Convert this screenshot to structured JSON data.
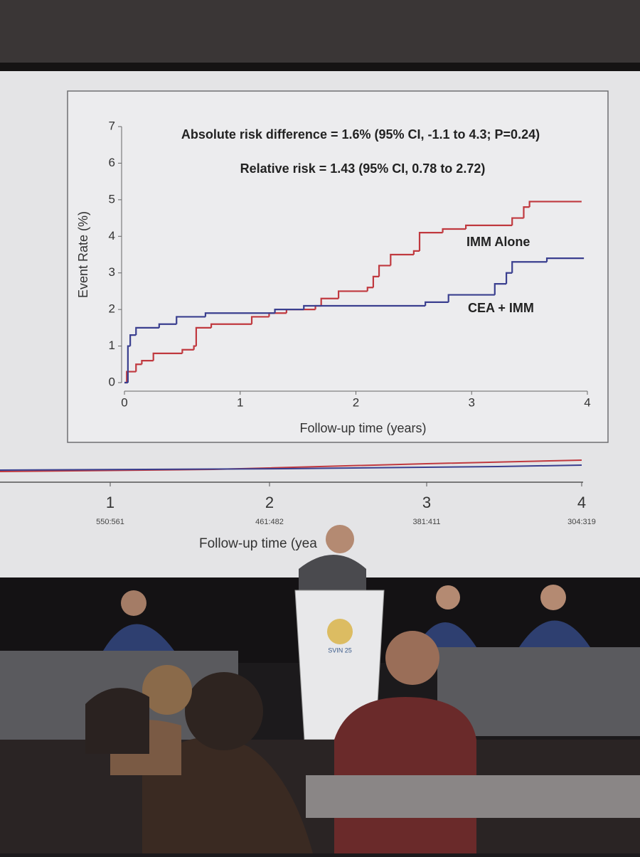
{
  "chart_data": {
    "type": "step",
    "annotations": [
      "Absolute risk difference = 1.6% (95% CI, -1.1 to 4.3; P=0.24)",
      "Relative risk =  1.43 (95% CI, 0.78 to 2.72)"
    ],
    "x_label": "Follow-up time (years)",
    "y_label": "Event Rate (%)",
    "xlim": [
      0,
      4
    ],
    "ylim": [
      0,
      7
    ],
    "xticks": [
      0,
      1,
      2,
      3,
      4
    ],
    "yticks": [
      0,
      1,
      2,
      3,
      4,
      5,
      6,
      7
    ],
    "series": [
      {
        "name": "IMM Alone",
        "color": "#c0393f",
        "x": [
          0,
          0.02,
          0.1,
          0.15,
          0.25,
          0.5,
          0.6,
          0.62,
          0.75,
          1.1,
          1.25,
          1.4,
          1.65,
          1.7,
          1.85,
          2.1,
          2.15,
          2.2,
          2.3,
          2.5,
          2.55,
          2.75,
          2.95,
          3.35,
          3.45,
          3.5,
          3.95
        ],
        "values": [
          0,
          0.3,
          0.5,
          0.6,
          0.8,
          0.9,
          1.0,
          1.5,
          1.6,
          1.8,
          1.9,
          2.0,
          2.1,
          2.3,
          2.5,
          2.6,
          2.9,
          3.2,
          3.5,
          3.6,
          4.1,
          4.2,
          4.3,
          4.5,
          4.8,
          4.95,
          4.95
        ]
      },
      {
        "name": "CEA + IMM",
        "color": "#3a3f8f",
        "x": [
          0,
          0.03,
          0.05,
          0.1,
          0.3,
          0.45,
          0.7,
          1.3,
          1.55,
          2.6,
          2.8,
          3.2,
          3.3,
          3.35,
          3.65,
          3.97
        ],
        "values": [
          0,
          1.0,
          1.3,
          1.5,
          1.6,
          1.8,
          1.9,
          2.0,
          2.1,
          2.2,
          2.4,
          2.7,
          3.0,
          3.3,
          3.4,
          3.4
        ]
      }
    ]
  },
  "lower_axis": {
    "ticks": [
      "1",
      "2",
      "3",
      "4"
    ],
    "at_risk": [
      "550:561",
      "461:482",
      "381:411",
      "304:319"
    ],
    "label": "Follow-up time (yea"
  },
  "podium": {
    "logo": "SVIN 25"
  }
}
